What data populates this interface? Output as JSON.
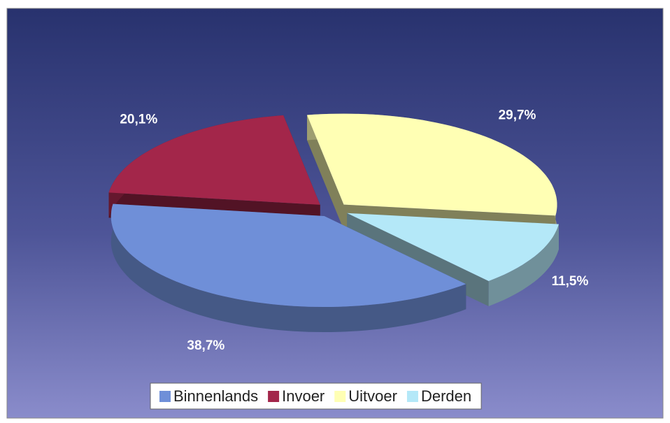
{
  "chart_data": {
    "type": "pie",
    "categories": [
      "Binnenlands",
      "Invoer",
      "Uitvoer",
      "Derden"
    ],
    "values": [
      38.7,
      20.1,
      29.7,
      11.5
    ],
    "value_labels": [
      "38,7%",
      "20,1%",
      "29,7%",
      "11,5%"
    ],
    "colors": [
      "#6f8fd8",
      "#a3264a",
      "#ffffb4",
      "#b4e8f8"
    ],
    "legend": "bottom"
  }
}
